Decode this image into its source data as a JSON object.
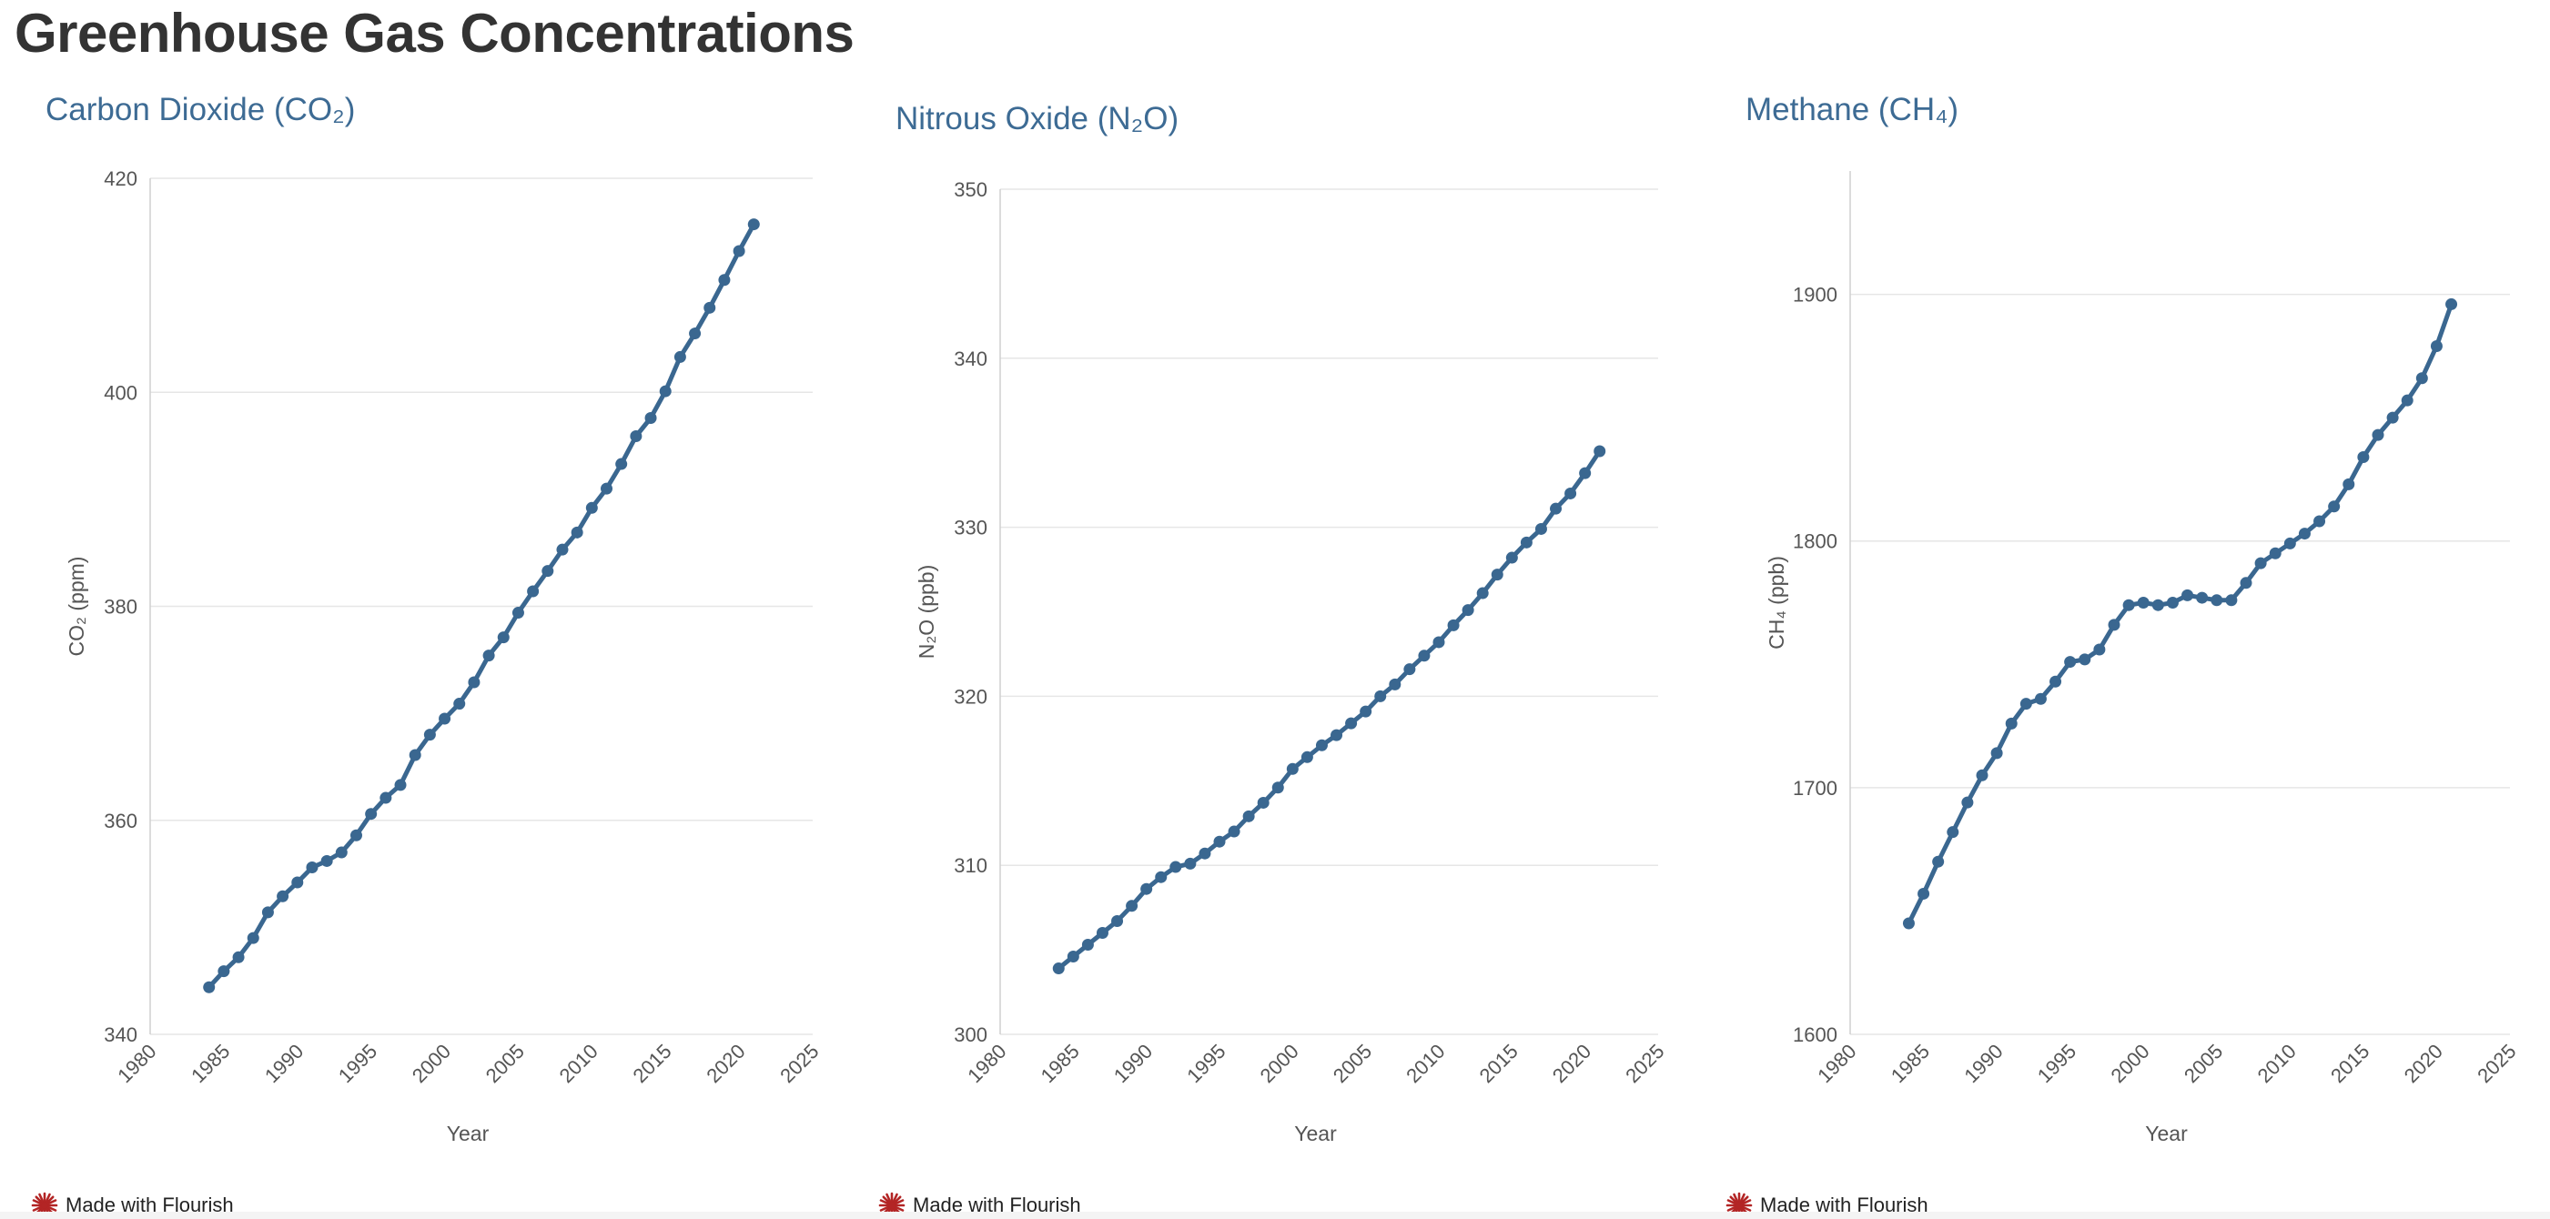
{
  "page_title": "Greenhouse Gas Concentrations",
  "footer_text": "Made with Flourish",
  "colors": {
    "line": "#3a6790",
    "title": "#3d6b94",
    "grid": "#e6e6e6"
  },
  "chart_data": [
    {
      "type": "line",
      "title": "Carbon Dioxide (CO₂)",
      "xlabel": "Year",
      "ylabel": "CO₂ (ppm)",
      "xlim": [
        1980,
        2025
      ],
      "ylim": [
        340,
        420
      ],
      "x_ticks": [
        1980,
        1985,
        1990,
        1995,
        2000,
        2005,
        2010,
        2015,
        2020,
        2025
      ],
      "y_ticks": [
        340,
        360,
        380,
        400,
        420
      ],
      "x": [
        1984,
        1985,
        1986,
        1987,
        1988,
        1989,
        1990,
        1991,
        1992,
        1993,
        1994,
        1995,
        1996,
        1997,
        1998,
        1999,
        2000,
        2001,
        2002,
        2003,
        2004,
        2005,
        2006,
        2007,
        2008,
        2009,
        2010,
        2011,
        2012,
        2013,
        2014,
        2015,
        2016,
        2017,
        2018,
        2019,
        2020,
        2021
      ],
      "values": [
        344.4,
        345.9,
        347.2,
        349.0,
        351.4,
        352.9,
        354.2,
        355.6,
        356.2,
        357.0,
        358.6,
        360.6,
        362.1,
        363.3,
        366.1,
        368.0,
        369.5,
        370.9,
        372.9,
        375.4,
        377.1,
        379.4,
        381.4,
        383.3,
        385.3,
        386.9,
        389.2,
        391.0,
        393.3,
        395.9,
        397.6,
        400.1,
        403.3,
        405.5,
        407.9,
        410.5,
        413.2,
        415.7
      ]
    },
    {
      "type": "line",
      "title": "Nitrous Oxide (N₂O)",
      "xlabel": "Year",
      "ylabel": "N₂O (ppb)",
      "xlim": [
        1980,
        2025
      ],
      "ylim": [
        300,
        350
      ],
      "x_ticks": [
        1980,
        1985,
        1990,
        1995,
        2000,
        2005,
        2010,
        2015,
        2020,
        2025
      ],
      "y_ticks": [
        300,
        310,
        320,
        330,
        340,
        350
      ],
      "x": [
        1984,
        1985,
        1986,
        1987,
        1988,
        1989,
        1990,
        1991,
        1992,
        1993,
        1994,
        1995,
        1996,
        1997,
        1998,
        1999,
        2000,
        2001,
        2002,
        2003,
        2004,
        2005,
        2006,
        2007,
        2008,
        2009,
        2010,
        2011,
        2012,
        2013,
        2014,
        2015,
        2016,
        2017,
        2018,
        2019,
        2020,
        2021
      ],
      "values": [
        303.9,
        304.6,
        305.3,
        306.0,
        306.7,
        307.6,
        308.6,
        309.3,
        309.9,
        310.1,
        310.7,
        311.4,
        312.0,
        312.9,
        313.7,
        314.6,
        315.7,
        316.4,
        317.1,
        317.7,
        318.4,
        319.1,
        320.0,
        320.7,
        321.6,
        322.4,
        323.2,
        324.2,
        325.1,
        326.1,
        327.2,
        328.2,
        329.1,
        329.9,
        331.1,
        332.0,
        333.2,
        334.5
      ]
    },
    {
      "type": "line",
      "title": "Methane (CH₄)",
      "xlabel": "Year",
      "ylabel": "CH₄ (ppb)",
      "xlim": [
        1980,
        2025
      ],
      "ylim": [
        1600,
        1950
      ],
      "x_ticks": [
        1980,
        1985,
        1990,
        1995,
        2000,
        2005,
        2010,
        2015,
        2020,
        2025
      ],
      "y_ticks": [
        1600,
        1700,
        1800,
        1900
      ],
      "x": [
        1984,
        1985,
        1986,
        1987,
        1988,
        1989,
        1990,
        1991,
        1992,
        1993,
        1994,
        1995,
        1996,
        1997,
        1998,
        1999,
        2000,
        2001,
        2002,
        2003,
        2004,
        2005,
        2006,
        2007,
        2008,
        2009,
        2010,
        2011,
        2012,
        2013,
        2014,
        2015,
        2016,
        2017,
        2018,
        2019,
        2020,
        2021
      ],
      "values": [
        1645,
        1657,
        1670,
        1682,
        1694,
        1705,
        1714,
        1726,
        1734,
        1736,
        1743,
        1751,
        1752,
        1756,
        1766,
        1774,
        1775,
        1774,
        1775,
        1778,
        1777,
        1776,
        1776,
        1783,
        1791,
        1795,
        1799,
        1803,
        1808,
        1814,
        1823,
        1834,
        1843,
        1850,
        1857,
        1866,
        1879,
        1896
      ]
    }
  ]
}
